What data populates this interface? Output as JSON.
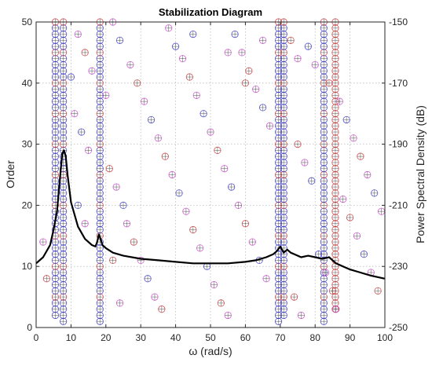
{
  "chart_data": {
    "type": "scatter",
    "title": "Stabilization Diagram",
    "xlabel": "ω (rad/s)",
    "ylabel_left": "Order",
    "ylabel_right": "Power Spectral Density (dB)",
    "xlim": [
      0,
      100
    ],
    "ylim_left": [
      0,
      50
    ],
    "ylim_right": [
      -250,
      -150
    ],
    "xticks": [
      "0",
      "10",
      "20",
      "30",
      "40",
      "50",
      "60",
      "70",
      "80",
      "90",
      "100"
    ],
    "yticks_left": [
      "0",
      "10",
      "20",
      "30",
      "40",
      "50"
    ],
    "yticks_right": [
      "-250",
      "-230",
      "-210",
      "-190",
      "-170",
      "-150"
    ],
    "grid": true,
    "marker_colors": {
      "stable": "#3333cc",
      "freq_stable": "#cc3333",
      "unstable": "#cc44cc"
    },
    "dense_columns": [
      {
        "x": 5.5,
        "min_order": 2,
        "max_order": 50,
        "kind": "stable"
      },
      {
        "x": 7.8,
        "min_order": 1,
        "max_order": 50,
        "kind": "stable"
      },
      {
        "x": 18.3,
        "min_order": 1,
        "max_order": 50,
        "kind": "stable"
      },
      {
        "x": 69.5,
        "min_order": 1,
        "max_order": 50,
        "kind": "stable"
      },
      {
        "x": 71.0,
        "min_order": 2,
        "max_order": 50,
        "kind": "stable"
      },
      {
        "x": 82.5,
        "min_order": 1,
        "max_order": 50,
        "kind": "stable"
      },
      {
        "x": 85.8,
        "min_order": 3,
        "max_order": 50,
        "kind": "freq_stable"
      }
    ],
    "psd_curve": {
      "name": "PSD",
      "x": [
        0,
        2,
        4,
        5,
        6,
        7,
        7.5,
        8,
        8.5,
        9,
        10,
        12,
        14,
        16,
        17,
        17.5,
        18,
        18.5,
        19,
        20,
        22,
        25,
        30,
        35,
        40,
        45,
        50,
        55,
        60,
        63,
        66,
        68,
        69,
        70,
        70.5,
        71,
        72,
        73,
        74,
        76,
        78,
        80,
        82,
        84,
        86,
        88,
        90,
        93,
        96,
        100
      ],
      "y": [
        -229,
        -227,
        -223,
        -218,
        -212,
        -199,
        -193,
        -192,
        -194,
        -200,
        -209,
        -217,
        -221,
        -223,
        -223.5,
        -222,
        -219.5,
        -221,
        -223,
        -224,
        -225.5,
        -226.5,
        -227.5,
        -228,
        -228.5,
        -229,
        -229,
        -229,
        -228.5,
        -228,
        -227,
        -226,
        -225,
        -223.5,
        -224.5,
        -225.5,
        -224.5,
        -225.5,
        -226,
        -227,
        -226.5,
        -227,
        -227.5,
        -227,
        -229,
        -230,
        -231,
        -232,
        -233,
        -234
      ]
    },
    "sparse_points": [
      [
        12,
        48,
        "unstable"
      ],
      [
        14,
        45,
        "freq_stable"
      ],
      [
        16,
        42,
        "unstable"
      ],
      [
        22,
        50,
        "unstable"
      ],
      [
        24,
        47,
        "stable"
      ],
      [
        27,
        43,
        "unstable"
      ],
      [
        29,
        40,
        "freq_stable"
      ],
      [
        31,
        37,
        "unstable"
      ],
      [
        33,
        34,
        "stable"
      ],
      [
        35,
        31,
        "unstable"
      ],
      [
        37,
        28,
        "freq_stable"
      ],
      [
        39,
        25,
        "unstable"
      ],
      [
        41,
        22,
        "stable"
      ],
      [
        43,
        19,
        "unstable"
      ],
      [
        45,
        16,
        "freq_stable"
      ],
      [
        47,
        13,
        "unstable"
      ],
      [
        49,
        10,
        "stable"
      ],
      [
        51,
        7,
        "unstable"
      ],
      [
        53,
        4,
        "freq_stable"
      ],
      [
        55,
        2,
        "unstable"
      ],
      [
        57,
        48,
        "stable"
      ],
      [
        59,
        45,
        "unstable"
      ],
      [
        61,
        42,
        "freq_stable"
      ],
      [
        63,
        39,
        "unstable"
      ],
      [
        65,
        36,
        "stable"
      ],
      [
        67,
        33,
        "unstable"
      ],
      [
        75,
        30,
        "freq_stable"
      ],
      [
        77,
        27,
        "unstable"
      ],
      [
        79,
        24,
        "stable"
      ],
      [
        88,
        21,
        "unstable"
      ],
      [
        90,
        18,
        "freq_stable"
      ],
      [
        92,
        15,
        "unstable"
      ],
      [
        94,
        12,
        "stable"
      ],
      [
        96,
        9,
        "unstable"
      ],
      [
        98,
        6,
        "freq_stable"
      ],
      [
        11,
        35,
        "unstable"
      ],
      [
        13,
        32,
        "stable"
      ],
      [
        15,
        29,
        "unstable"
      ],
      [
        21,
        26,
        "freq_stable"
      ],
      [
        23,
        23,
        "unstable"
      ],
      [
        25,
        20,
        "stable"
      ],
      [
        26,
        17,
        "unstable"
      ],
      [
        28,
        14,
        "freq_stable"
      ],
      [
        30,
        11,
        "unstable"
      ],
      [
        32,
        8,
        "stable"
      ],
      [
        34,
        5,
        "unstable"
      ],
      [
        36,
        3,
        "freq_stable"
      ],
      [
        38,
        49,
        "unstable"
      ],
      [
        40,
        46,
        "stable"
      ],
      [
        42,
        44,
        "unstable"
      ],
      [
        44,
        41,
        "freq_stable"
      ],
      [
        46,
        38,
        "unstable"
      ],
      [
        48,
        35,
        "stable"
      ],
      [
        50,
        32,
        "unstable"
      ],
      [
        52,
        29,
        "freq_stable"
      ],
      [
        54,
        26,
        "unstable"
      ],
      [
        56,
        23,
        "stable"
      ],
      [
        58,
        20,
        "unstable"
      ],
      [
        60,
        17,
        "freq_stable"
      ],
      [
        62,
        14,
        "unstable"
      ],
      [
        64,
        11,
        "stable"
      ],
      [
        66,
        8,
        "unstable"
      ],
      [
        74,
        5,
        "freq_stable"
      ],
      [
        76,
        2,
        "unstable"
      ],
      [
        78,
        46,
        "stable"
      ],
      [
        80,
        43,
        "unstable"
      ],
      [
        84,
        40,
        "freq_stable"
      ],
      [
        87,
        37,
        "unstable"
      ],
      [
        89,
        34,
        "stable"
      ],
      [
        91,
        31,
        "unstable"
      ],
      [
        93,
        28,
        "freq_stable"
      ],
      [
        95,
        25,
        "unstable"
      ],
      [
        97,
        22,
        "stable"
      ],
      [
        99,
        19,
        "unstable"
      ],
      [
        3,
        8,
        "freq_stable"
      ],
      [
        2,
        14,
        "unstable"
      ],
      [
        10,
        41,
        "stable"
      ],
      [
        20,
        38,
        "unstable"
      ],
      [
        73,
        47,
        "freq_stable"
      ],
      [
        75,
        44,
        "unstable"
      ],
      [
        81,
        12,
        "stable"
      ],
      [
        83,
        9,
        "unstable"
      ],
      [
        85,
        6,
        "freq_stable"
      ],
      [
        86,
        3,
        "unstable"
      ],
      [
        12,
        20,
        "stable"
      ],
      [
        14,
        17,
        "unstable"
      ],
      [
        22,
        11,
        "freq_stable"
      ],
      [
        24,
        4,
        "unstable"
      ],
      [
        45,
        48,
        "stable"
      ],
      [
        55,
        45,
        "unstable"
      ],
      [
        60,
        40,
        "freq_stable"
      ],
      [
        65,
        47,
        "unstable"
      ]
    ]
  }
}
